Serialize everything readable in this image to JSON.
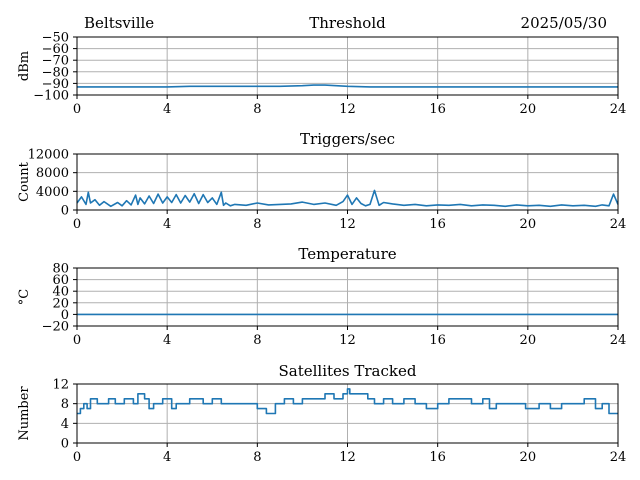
{
  "header": {
    "station": "Beltsville",
    "date": "2025/05/30"
  },
  "colors": {
    "series": "#1f77b4",
    "grid": "#b0b0b0"
  },
  "chart_data": [
    {
      "type": "line",
      "title": "Threshold",
      "ylabel": "dBm",
      "xlim": [
        0,
        24
      ],
      "xticks": [
        0,
        4,
        8,
        12,
        16,
        20,
        24
      ],
      "ylim": [
        -100,
        -50
      ],
      "yticks": [
        -100,
        -90,
        -80,
        -70,
        -60,
        -50
      ],
      "grid": true,
      "series": [
        {
          "x": [
            0,
            1,
            2,
            3,
            4,
            5,
            6,
            7,
            8,
            9,
            10,
            10.5,
            11,
            11.5,
            12,
            13,
            14,
            15,
            16,
            17,
            18,
            19,
            20,
            21,
            22,
            23,
            24
          ],
          "values": [
            -93,
            -93,
            -93,
            -93,
            -93,
            -92.5,
            -92.5,
            -92.5,
            -92.5,
            -92.5,
            -92,
            -91.5,
            -91.5,
            -92,
            -92.5,
            -93,
            -93,
            -93,
            -93,
            -93,
            -93,
            -93,
            -93,
            -93,
            -93,
            -93,
            -93
          ]
        }
      ]
    },
    {
      "type": "line",
      "title": "Triggers/sec",
      "ylabel": "Count",
      "xlim": [
        0,
        24
      ],
      "xticks": [
        0,
        4,
        8,
        12,
        16,
        20,
        24
      ],
      "ylim": [
        0,
        12000
      ],
      "yticks": [
        0,
        4000,
        8000,
        12000
      ],
      "grid": true,
      "series": [
        {
          "x": [
            0,
            0.2,
            0.4,
            0.5,
            0.6,
            0.8,
            1.0,
            1.2,
            1.5,
            1.8,
            2.0,
            2.2,
            2.4,
            2.6,
            2.7,
            2.8,
            3.0,
            3.2,
            3.4,
            3.6,
            3.8,
            4.0,
            4.2,
            4.4,
            4.6,
            4.8,
            5.0,
            5.2,
            5.4,
            5.6,
            5.8,
            6.0,
            6.2,
            6.4,
            6.5,
            6.6,
            6.8,
            7.0,
            7.5,
            8.0,
            8.5,
            9.0,
            9.5,
            10.0,
            10.5,
            11.0,
            11.5,
            11.8,
            12.0,
            12.2,
            12.4,
            12.6,
            12.8,
            13.0,
            13.2,
            13.4,
            13.6,
            14.0,
            14.5,
            15.0,
            15.5,
            16.0,
            16.5,
            17.0,
            17.5,
            18.0,
            18.5,
            19.0,
            19.5,
            20.0,
            20.5,
            21.0,
            21.5,
            22.0,
            22.5,
            23.0,
            23.3,
            23.6,
            23.8,
            24.0
          ],
          "values": [
            1500,
            2800,
            1200,
            3800,
            1500,
            2200,
            1000,
            1800,
            800,
            1600,
            900,
            2000,
            1100,
            3200,
            1200,
            2600,
            1300,
            3000,
            1400,
            3400,
            1500,
            2800,
            1600,
            3300,
            1500,
            3100,
            1700,
            3500,
            1400,
            3300,
            1600,
            2600,
            1200,
            3800,
            1000,
            1500,
            900,
            1200,
            1000,
            1500,
            1100,
            1200,
            1300,
            1700,
            1200,
            1500,
            1000,
            1800,
            3200,
            1200,
            2600,
            1400,
            900,
            1200,
            4200,
            1000,
            1600,
            1300,
            1000,
            1200,
            900,
            1100,
            1000,
            1200,
            900,
            1100,
            1000,
            800,
            1100,
            900,
            1000,
            800,
            1100,
            900,
            1000,
            800,
            1100,
            900,
            3400,
            1200
          ]
        }
      ]
    },
    {
      "type": "line",
      "title": "Temperature",
      "ylabel": "°C",
      "xlim": [
        0,
        24
      ],
      "xticks": [
        0,
        4,
        8,
        12,
        16,
        20,
        24
      ],
      "ylim": [
        -20,
        80
      ],
      "yticks": [
        -20,
        0,
        20,
        40,
        60,
        80
      ],
      "grid": true,
      "series": [
        {
          "x": [
            0,
            24
          ],
          "values": [
            0,
            0
          ]
        }
      ]
    },
    {
      "type": "line",
      "title": "Satellites Tracked",
      "ylabel": "Number",
      "xlim": [
        0,
        24
      ],
      "xticks": [
        0,
        4,
        8,
        12,
        16,
        20,
        24
      ],
      "ylim": [
        0,
        12
      ],
      "yticks": [
        0,
        4,
        8,
        12
      ],
      "grid": true,
      "step": true,
      "series": [
        {
          "x": [
            0,
            0.15,
            0.3,
            0.45,
            0.6,
            0.9,
            1.4,
            1.7,
            2.1,
            2.5,
            2.7,
            3.0,
            3.2,
            3.4,
            3.8,
            4.2,
            4.4,
            5.0,
            5.6,
            6.0,
            6.4,
            7.0,
            7.5,
            8.0,
            8.4,
            8.8,
            9.2,
            9.6,
            10.0,
            10.6,
            11.0,
            11.4,
            11.8,
            12.0,
            12.1,
            12.5,
            12.9,
            13.2,
            13.6,
            14.0,
            14.5,
            15.0,
            15.5,
            16.0,
            16.5,
            17.0,
            17.5,
            18.0,
            18.3,
            18.6,
            19.0,
            19.4,
            19.9,
            20.5,
            21.0,
            21.5,
            22.0,
            22.5,
            23.0,
            23.3,
            23.6,
            24.0
          ],
          "values": [
            6,
            7,
            8,
            7,
            9,
            8,
            9,
            8,
            9,
            8,
            10,
            9,
            7,
            8,
            9,
            7,
            8,
            9,
            8,
            9,
            8,
            8,
            8,
            7,
            6,
            8,
            9,
            8,
            9,
            9,
            10,
            9,
            10,
            11,
            10,
            10,
            9,
            8,
            9,
            8,
            9,
            8,
            7,
            8,
            9,
            9,
            8,
            9,
            7,
            8,
            8,
            8,
            7,
            8,
            7,
            8,
            8,
            9,
            7,
            8,
            6,
            6
          ]
        }
      ]
    }
  ]
}
